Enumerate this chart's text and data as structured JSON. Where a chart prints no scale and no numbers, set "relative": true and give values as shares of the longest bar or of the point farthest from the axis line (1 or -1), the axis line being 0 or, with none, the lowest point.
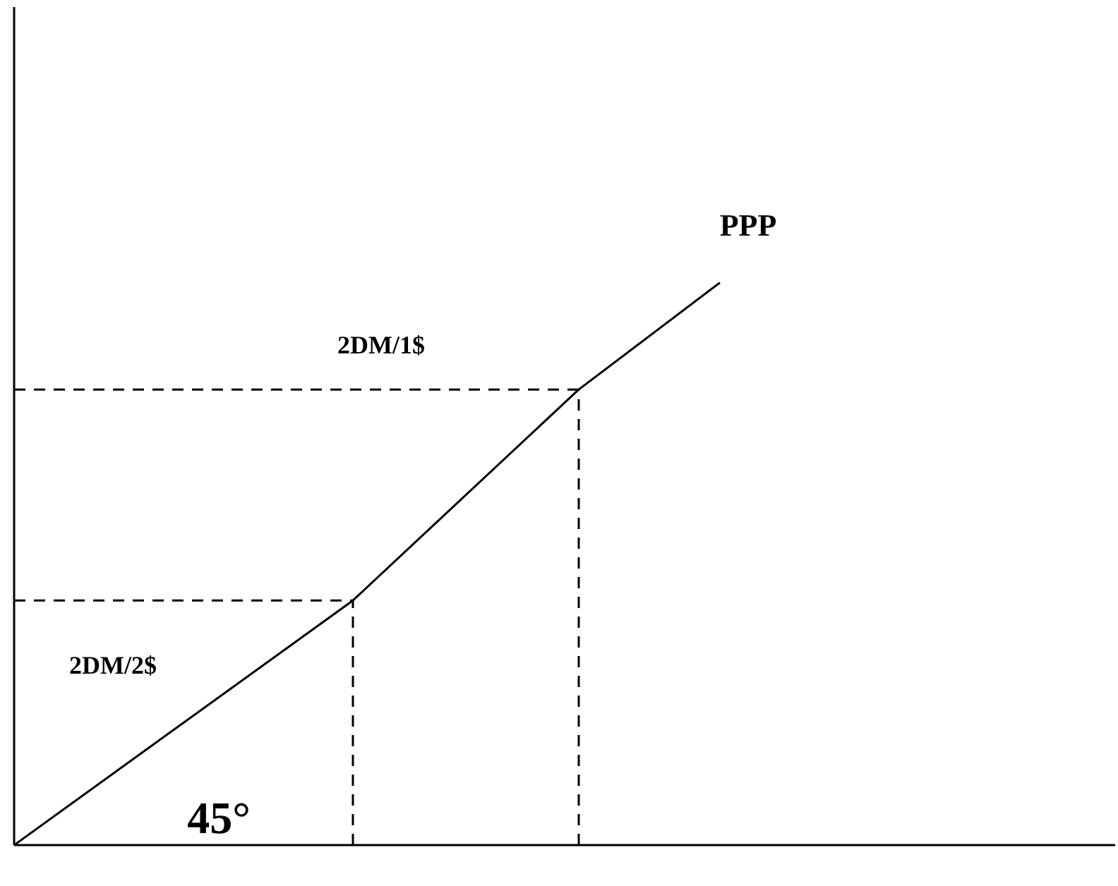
{
  "chart_data": {
    "type": "line",
    "relative": true,
    "line_style": "solid",
    "categories": [
      null,
      null,
      null,
      null,
      null,
      null,
      null,
      null,
      null,
      null,
      null,
      null,
      null,
      null,
      null,
      null,
      null,
      null,
      null,
      null,
      null,
      null,
      null,
      null,
      null,
      null,
      null,
      null,
      null,
      null,
      null,
      null,
      null,
      null,
      null,
      null,
      null,
      null,
      null,
      null
    ],
    "series": [
      {
        "name": "PPP",
        "color": "#000000",
        "values": [
          0,
          null,
          null,
          null,
          null,
          null,
          null,
          null,
          null,
          null,
          null,
          null,
          0.435,
          null,
          null,
          null,
          null,
          null,
          null,
          null,
          0.81,
          null,
          null,
          null,
          null,
          1,
          null,
          null,
          null,
          null,
          null,
          null,
          null,
          null,
          null,
          null,
          null,
          null,
          null,
          null
        ]
      }
    ],
    "ref_lines": [
      {
        "axis": "y",
        "value": 0.435,
        "color": "#000000",
        "line_style": "dashed"
      },
      {
        "axis": "y",
        "value": 0.81,
        "color": "#000000",
        "line_style": "dashed"
      }
    ],
    "annotations": [
      "2DM/1$",
      "2DM/2$",
      "45°"
    ]
  }
}
